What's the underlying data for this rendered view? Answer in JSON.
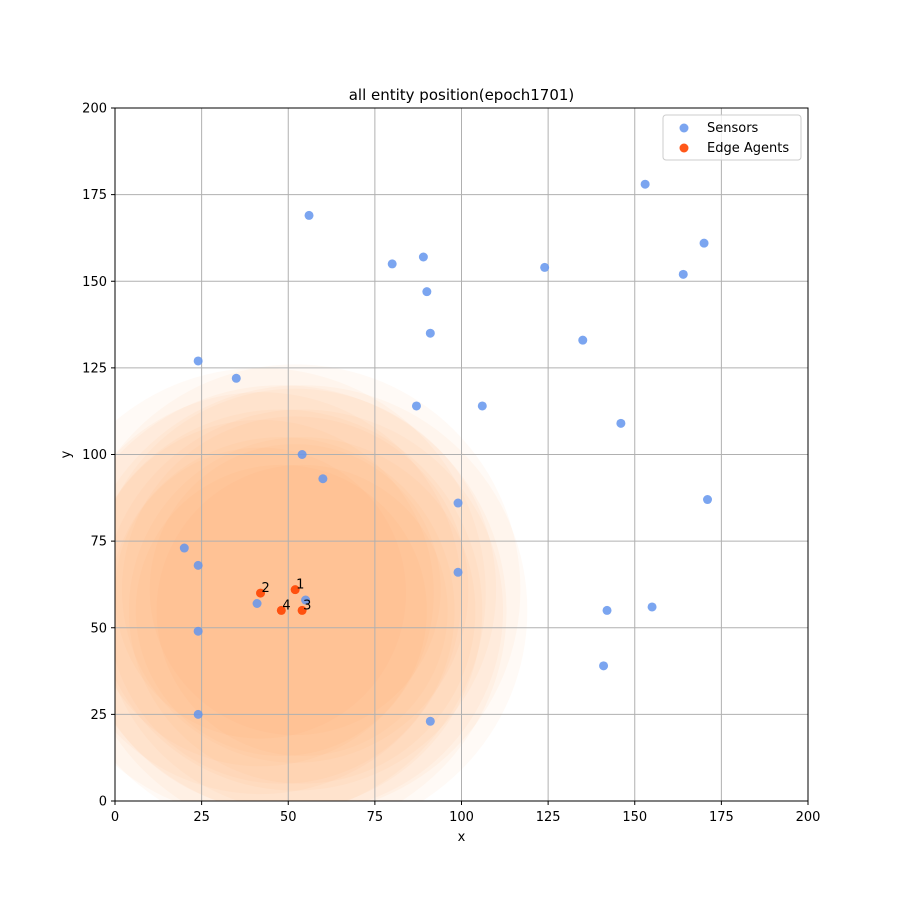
{
  "chart_data": {
    "type": "scatter",
    "title": "all entity position(epoch1701)",
    "xlabel": "x",
    "ylabel": "y",
    "xlim": [
      0,
      200
    ],
    "ylim": [
      0,
      200
    ],
    "xticks": [
      0,
      25,
      50,
      75,
      100,
      125,
      150,
      175,
      200
    ],
    "yticks": [
      0,
      25,
      50,
      75,
      100,
      125,
      150,
      175,
      200
    ],
    "grid": true,
    "legend_position": "top-right",
    "series": [
      {
        "name": "Sensors",
        "color": "#6495ed",
        "points": [
          [
            56,
            169
          ],
          [
            80,
            155
          ],
          [
            89,
            157
          ],
          [
            90,
            147
          ],
          [
            91,
            135
          ],
          [
            124,
            154
          ],
          [
            153,
            178
          ],
          [
            170,
            161
          ],
          [
            164,
            152
          ],
          [
            135,
            133
          ],
          [
            24,
            127
          ],
          [
            35,
            122
          ],
          [
            87,
            114
          ],
          [
            106,
            114
          ],
          [
            146,
            109
          ],
          [
            54,
            100
          ],
          [
            60,
            93
          ],
          [
            99,
            86
          ],
          [
            171,
            87
          ],
          [
            20,
            73
          ],
          [
            24,
            68
          ],
          [
            99,
            66
          ],
          [
            41,
            57
          ],
          [
            55,
            58
          ],
          [
            142,
            55
          ],
          [
            155,
            56
          ],
          [
            24,
            49
          ],
          [
            141,
            39
          ],
          [
            24,
            25
          ],
          [
            91,
            23
          ]
        ]
      },
      {
        "name": "Edge Agents",
        "color": "#ff4500",
        "points": [
          {
            "label": "1",
            "x": 52,
            "y": 61
          },
          {
            "label": "2",
            "x": 42,
            "y": 60
          },
          {
            "label": "3",
            "x": 54,
            "y": 55
          },
          {
            "label": "4",
            "x": 48,
            "y": 55
          }
        ]
      }
    ],
    "coverage_color": "#ffa54f"
  }
}
